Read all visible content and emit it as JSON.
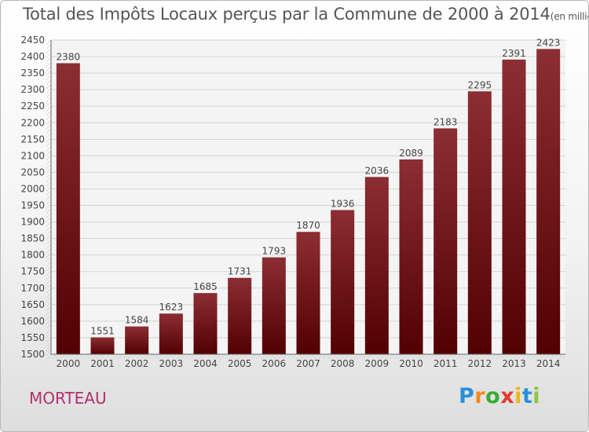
{
  "title": {
    "main": "Total des Impôts Locaux perçus par la Commune de 2000 à 2014",
    "unit": "(en milliers d'€)"
  },
  "commune": "MORTEAU",
  "logo": {
    "letters": [
      "P",
      "r",
      "o",
      "x",
      "i",
      "t",
      "i"
    ],
    "colors": [
      "#2a8fd6",
      "#f28a1c",
      "#3aaa35",
      "#e23b2e",
      "#f2b41c",
      "#2a8fd6",
      "#8cc63f"
    ]
  },
  "colors": {
    "bar_top": "#8c2e33",
    "bar_bottom": "#520003",
    "text": "#555555",
    "commune": "#b5306d"
  },
  "chart_data": {
    "type": "bar",
    "title": "Total des Impôts Locaux perçus par la Commune de 2000 à 2014",
    "ylabel": "en milliers d'€",
    "xlabel": "",
    "categories": [
      "2000",
      "2001",
      "2002",
      "2003",
      "2004",
      "2005",
      "2006",
      "2007",
      "2008",
      "2009",
      "2010",
      "2011",
      "2012",
      "2013",
      "2014"
    ],
    "values": [
      2380,
      1551,
      1584,
      1623,
      1685,
      1731,
      1793,
      1870,
      1936,
      2036,
      2089,
      2183,
      2295,
      2391,
      2423
    ],
    "ylim": [
      1500,
      2450
    ],
    "yticks": [
      1500,
      1550,
      1600,
      1650,
      1700,
      1750,
      1800,
      1850,
      1900,
      1950,
      2000,
      2050,
      2100,
      2150,
      2200,
      2250,
      2300,
      2350,
      2400,
      2450
    ],
    "grid": true
  }
}
